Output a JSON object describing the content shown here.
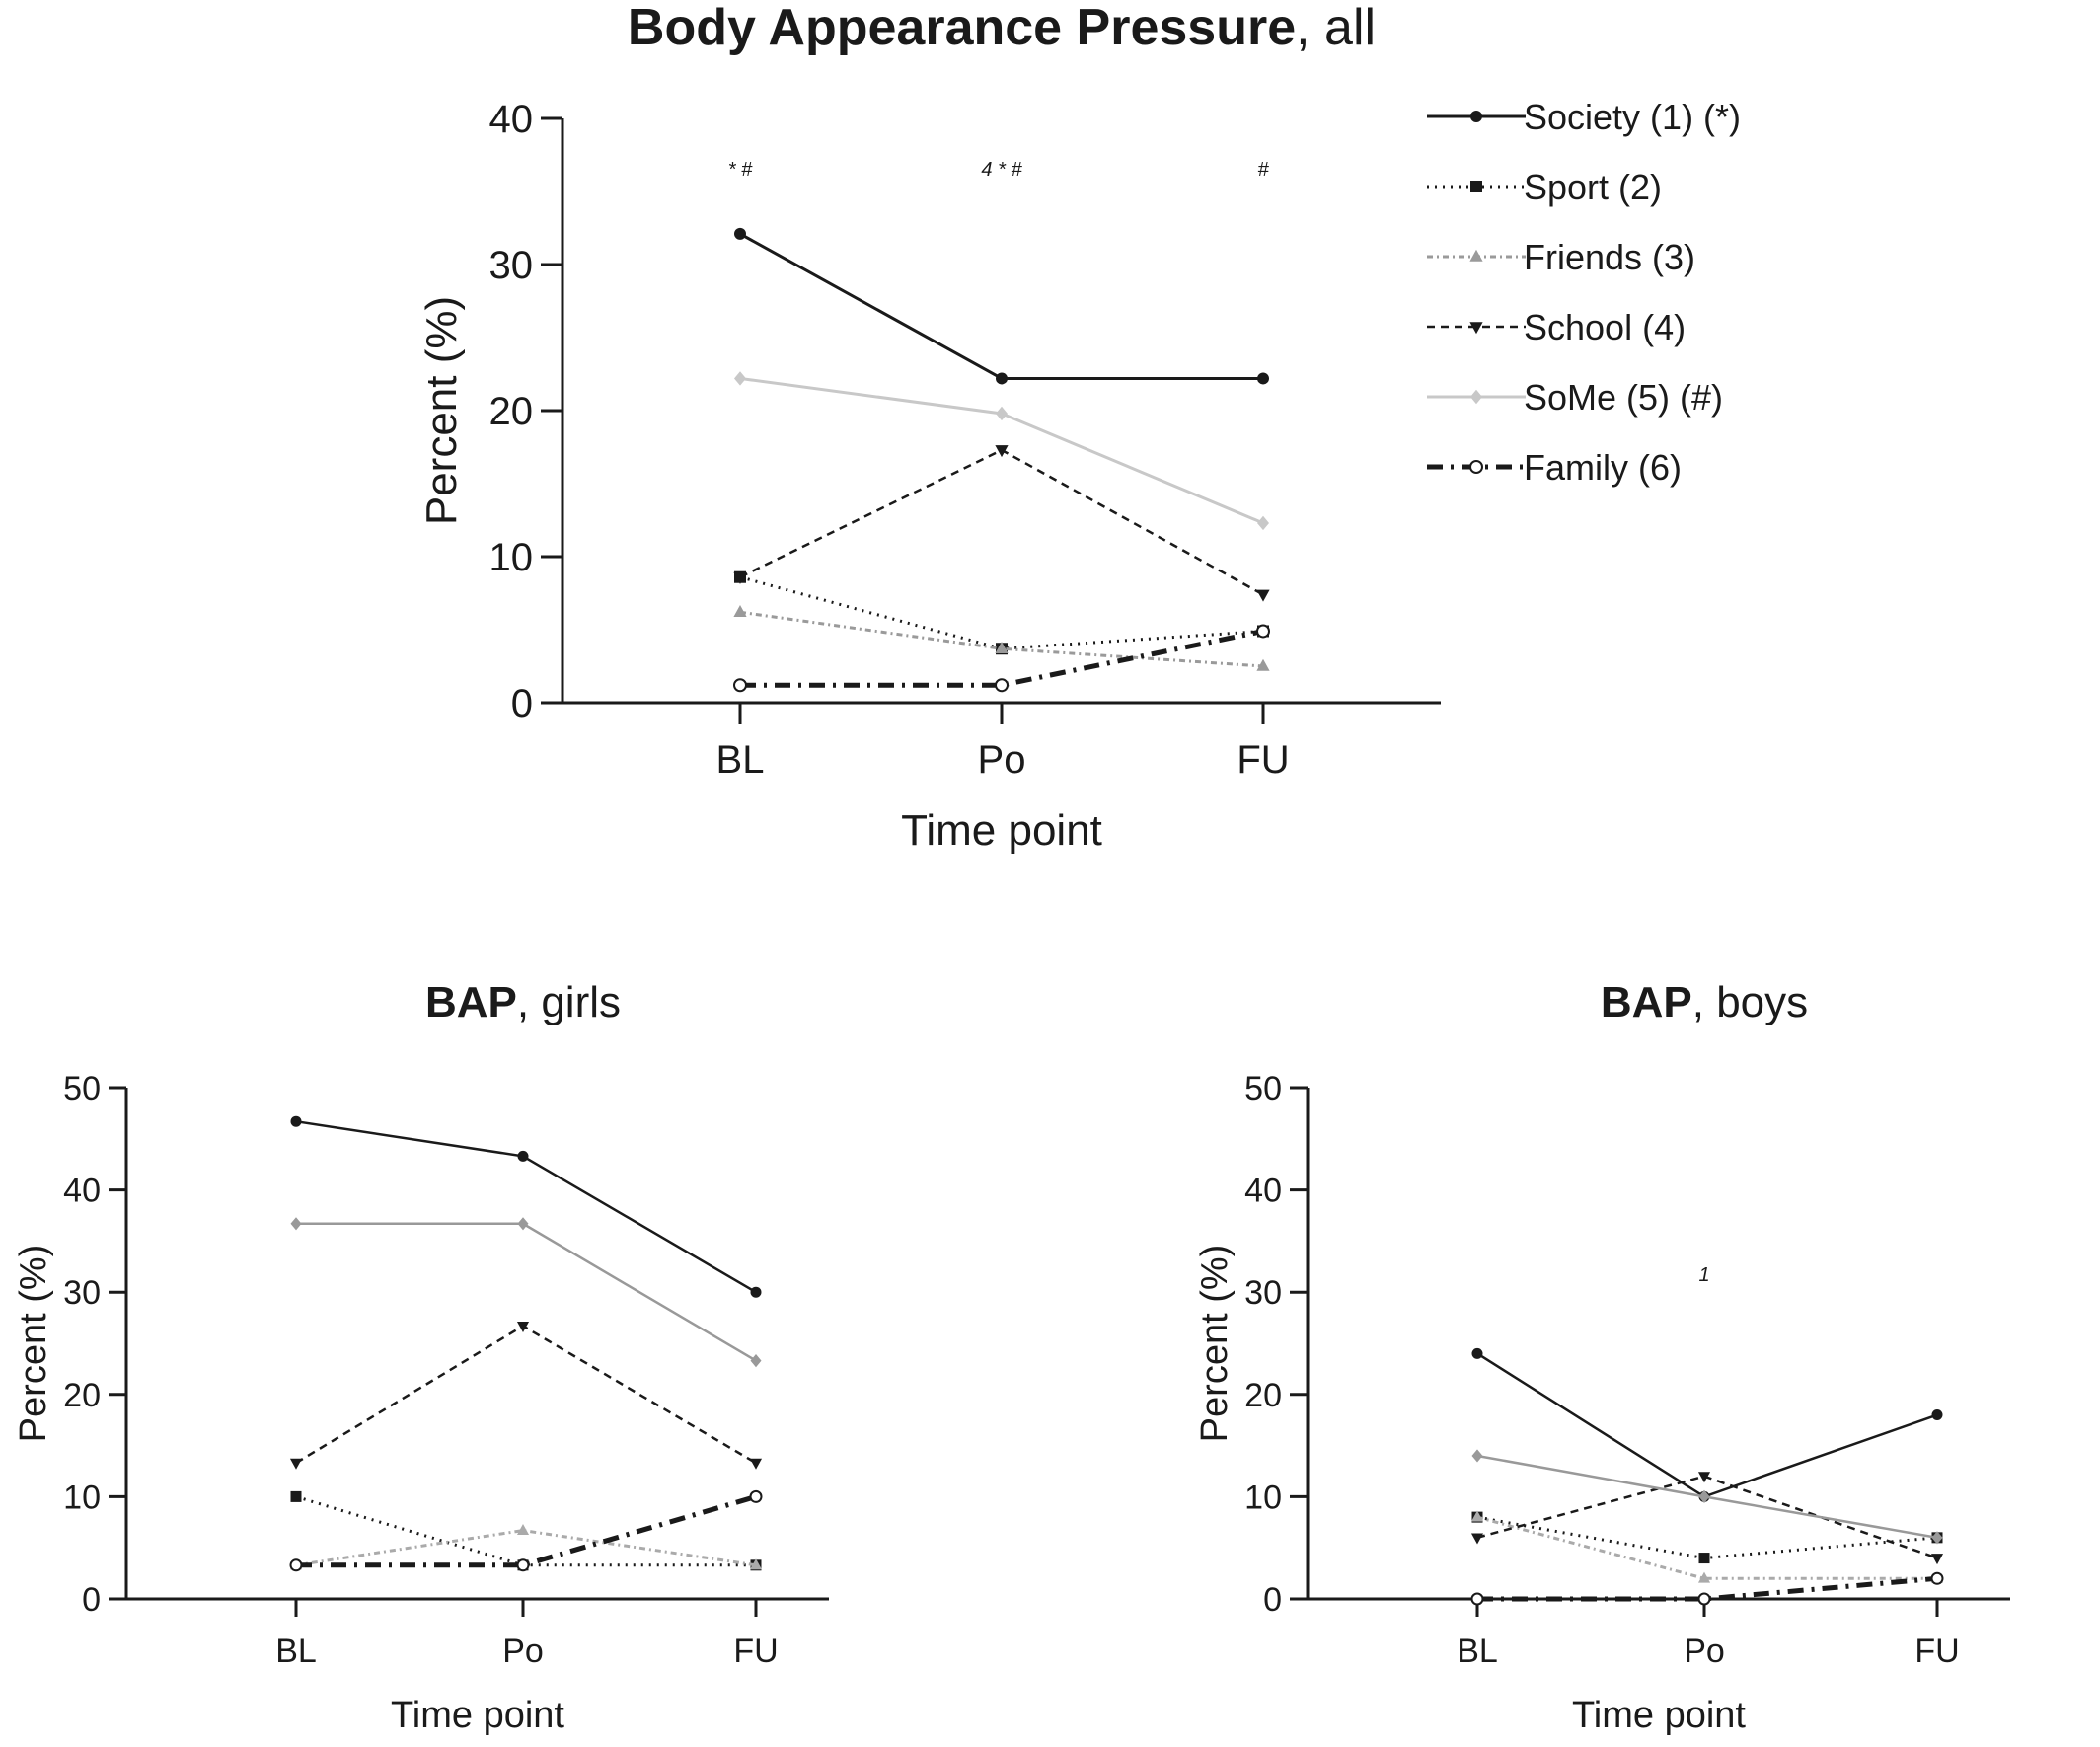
{
  "chart_data": [
    {
      "type": "line",
      "title_bold": "Body Appearance Pressure",
      "title_rest": ", all",
      "xlabel": "Time point",
      "ylabel": "Percent (%)",
      "categories": [
        "BL",
        "Po",
        "FU"
      ],
      "ylim": [
        0,
        40
      ],
      "yticks": [
        "0",
        "10",
        "20",
        "30",
        "40"
      ],
      "legend_position": "right",
      "annotations": [
        "* #",
        "4 * #",
        "#"
      ],
      "series": [
        {
          "name": "Society (1) (*)",
          "values": [
            32.1,
            22.2,
            22.2
          ],
          "color": "#1a1a1a",
          "dash": "",
          "marker": "circle",
          "width": 3
        },
        {
          "name": "Sport (2)",
          "values": [
            8.6,
            3.7,
            4.9
          ],
          "color": "#1a1a1a",
          "dash": "2 6",
          "marker": "square",
          "width": 3
        },
        {
          "name": "Friends (3)",
          "values": [
            6.2,
            3.7,
            2.5
          ],
          "color": "#9a9a9a",
          "dash": "6 4 2 4",
          "marker": "triangle-up",
          "width": 3
        },
        {
          "name": "School (4)",
          "values": [
            8.6,
            17.3,
            7.4
          ],
          "color": "#1a1a1a",
          "dash": "8 6",
          "marker": "triangle-down",
          "width": 2.5
        },
        {
          "name": "SoMe (5) (#)",
          "values": [
            22.2,
            19.8,
            12.3
          ],
          "color": "#c8c8c8",
          "dash": "",
          "marker": "diamond",
          "width": 3
        },
        {
          "name": "Family (6)",
          "values": [
            1.2,
            1.2,
            4.9
          ],
          "color": "#1a1a1a",
          "dash": "16 8 3 8",
          "marker": "open-circle",
          "width": 5
        }
      ]
    },
    {
      "type": "line",
      "title_bold": "BAP",
      "title_rest": ", girls",
      "xlabel": "Time point",
      "ylabel": "Percent (%)",
      "categories": [
        "BL",
        "Po",
        "FU"
      ],
      "ylim": [
        0,
        50
      ],
      "yticks": [
        "0",
        "10",
        "20",
        "30",
        "40",
        "50"
      ],
      "series": [
        {
          "values": [
            46.7,
            43.3,
            30.0
          ],
          "color": "#1a1a1a",
          "dash": "",
          "marker": "circle",
          "width": 2.5
        },
        {
          "values": [
            10.0,
            3.3,
            3.3
          ],
          "color": "#1a1a1a",
          "dash": "2 6",
          "marker": "square",
          "width": 3
        },
        {
          "values": [
            3.3,
            6.7,
            3.3
          ],
          "color": "#aaaaaa",
          "dash": "6 4 2 4",
          "marker": "triangle-up",
          "width": 3
        },
        {
          "values": [
            13.3,
            26.7,
            13.3
          ],
          "color": "#1a1a1a",
          "dash": "8 6",
          "marker": "triangle-down",
          "width": 2.5
        },
        {
          "values": [
            36.7,
            36.7,
            23.3
          ],
          "color": "#999999",
          "dash": "",
          "marker": "diamond",
          "width": 2.5
        },
        {
          "values": [
            3.3,
            3.3,
            10.0
          ],
          "color": "#1a1a1a",
          "dash": "16 8 3 8",
          "marker": "open-circle",
          "width": 5
        }
      ]
    },
    {
      "type": "line",
      "title_bold": "BAP",
      "title_rest": ", boys",
      "xlabel": "Time point",
      "ylabel": "Percent (%)",
      "categories": [
        "BL",
        "Po",
        "FU"
      ],
      "ylim": [
        0,
        50
      ],
      "yticks": [
        "0",
        "10",
        "20",
        "30",
        "40",
        "50"
      ],
      "annotations": [
        "",
        "1",
        ""
      ],
      "series": [
        {
          "values": [
            24.0,
            10.0,
            18.0
          ],
          "color": "#1a1a1a",
          "dash": "",
          "marker": "circle",
          "width": 2.5
        },
        {
          "values": [
            8.0,
            4.0,
            6.0
          ],
          "color": "#1a1a1a",
          "dash": "2 6",
          "marker": "square",
          "width": 3
        },
        {
          "values": [
            8.0,
            2.0,
            2.0
          ],
          "color": "#aaaaaa",
          "dash": "6 4 2 4",
          "marker": "triangle-up",
          "width": 3
        },
        {
          "values": [
            6.0,
            12.0,
            4.0
          ],
          "color": "#1a1a1a",
          "dash": "8 6",
          "marker": "triangle-down",
          "width": 2.5
        },
        {
          "values": [
            14.0,
            10.0,
            6.0
          ],
          "color": "#999999",
          "dash": "",
          "marker": "diamond",
          "width": 2.5
        },
        {
          "values": [
            0.0,
            0.0,
            2.0
          ],
          "color": "#1a1a1a",
          "dash": "16 8 3 8",
          "marker": "open-circle",
          "width": 5
        }
      ]
    }
  ]
}
